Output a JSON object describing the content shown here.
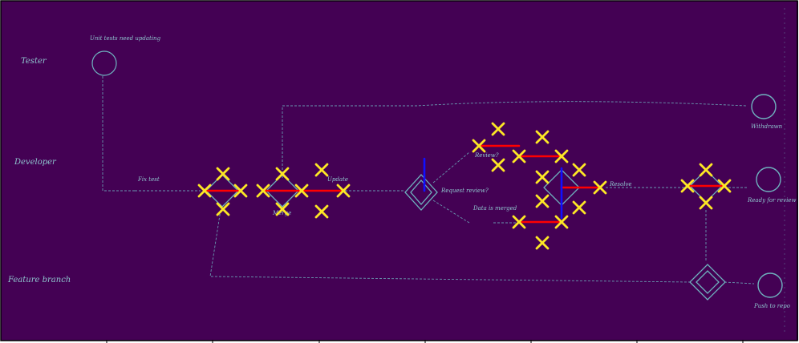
{
  "colors": {
    "background": "#440154",
    "sketch": "#6fb3bf",
    "sketch_text": "#8fc6cf",
    "marker_x": "#fde725",
    "segment_red": "#ff0000",
    "segment_blue": "#1010ff",
    "frame": "#000000"
  },
  "lanes": [
    {
      "label": "Tester"
    },
    {
      "label": "Developer"
    },
    {
      "label": "Feature branch"
    }
  ],
  "annotations": [
    {
      "text": "Unit tests need updating"
    },
    {
      "text": "Fix test"
    },
    {
      "text": "Merge"
    },
    {
      "text": "Update"
    },
    {
      "text": "Request review?"
    },
    {
      "text": "Review?"
    },
    {
      "text": "Data is merged"
    },
    {
      "text": "Resolve"
    },
    {
      "text": "Withdrawn"
    },
    {
      "text": "Ready for review"
    },
    {
      "text": "Push to repo"
    }
  ],
  "marker_icons": {
    "cross": "x-marker",
    "shape": "diamond-gateway",
    "event": "circle-event"
  }
}
